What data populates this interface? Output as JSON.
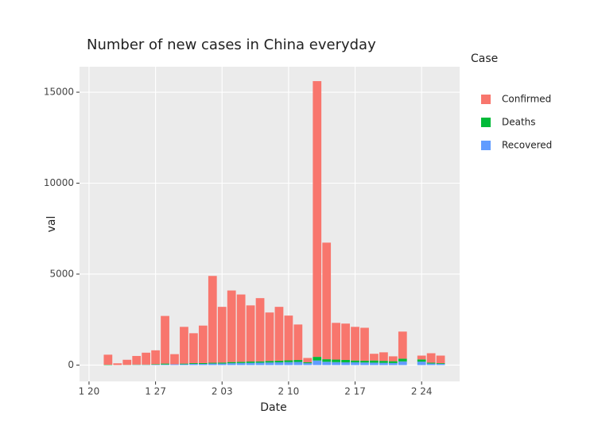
{
  "chart_data": {
    "type": "bar",
    "stacked": true,
    "title": "Number of new cases in China everyday",
    "x_label": "Date",
    "y_label": "val",
    "legend_title": "Case",
    "legend_position": "right",
    "x": [
      "01-22",
      "01-23",
      "01-24",
      "01-25",
      "01-26",
      "01-27",
      "01-28",
      "01-29",
      "01-30",
      "01-31",
      "02-01",
      "02-02",
      "02-03",
      "02-04",
      "02-05",
      "02-06",
      "02-07",
      "02-08",
      "02-09",
      "02-10",
      "02-11",
      "02-12",
      "02-13",
      "02-14",
      "02-15",
      "02-16",
      "02-17",
      "02-18",
      "02-19",
      "02-20",
      "02-21",
      "02-22",
      "02-23",
      "02-24",
      "02-25",
      "02-26"
    ],
    "series": [
      {
        "name": "Recovered",
        "color": "#619CFF",
        "values": [
          0,
          0,
          0,
          10,
          10,
          20,
          30,
          40,
          40,
          60,
          60,
          80,
          80,
          100,
          110,
          120,
          130,
          140,
          150,
          160,
          170,
          100,
          250,
          180,
          160,
          150,
          150,
          140,
          130,
          120,
          110,
          200,
          null,
          190,
          80,
          60
        ]
      },
      {
        "name": "Deaths",
        "color": "#00BA38",
        "values": [
          17,
          1,
          8,
          16,
          14,
          26,
          49,
          2,
          38,
          43,
          46,
          45,
          57,
          64,
          66,
          73,
          73,
          86,
          89,
          97,
          108,
          50,
          200,
          140,
          140,
          130,
          100,
          100,
          120,
          110,
          100,
          150,
          null,
          120,
          50,
          40
        ]
      },
      {
        "name": "Confirmed",
        "color": "#F8766D",
        "values": [
          553,
          94,
          282,
          474,
          656,
          764,
          2621,
          558,
          2022,
          1647,
          2064,
          4775,
          3063,
          3936,
          3704,
          3087,
          3477,
          2664,
          2961,
          2463,
          1952,
          240,
          15160,
          6410,
          2020,
          2000,
          1850,
          1810,
          370,
          470,
          270,
          1490,
          null,
          210,
          520,
          420
        ]
      }
    ],
    "legend_order": [
      2,
      1,
      0
    ],
    "xlim": [
      "01-19",
      "02-28"
    ],
    "xticks": [
      {
        "value": "01-20",
        "label": "1 20"
      },
      {
        "value": "01-27",
        "label": "1 27"
      },
      {
        "value": "02-03",
        "label": "2 03"
      },
      {
        "value": "02-10",
        "label": "2 10"
      },
      {
        "value": "02-17",
        "label": "2 17"
      },
      {
        "value": "02-24",
        "label": "2 24"
      }
    ],
    "ylim": [
      -900,
      16400
    ],
    "yticks": [
      0,
      5000,
      10000,
      15000
    ],
    "grid": true
  }
}
